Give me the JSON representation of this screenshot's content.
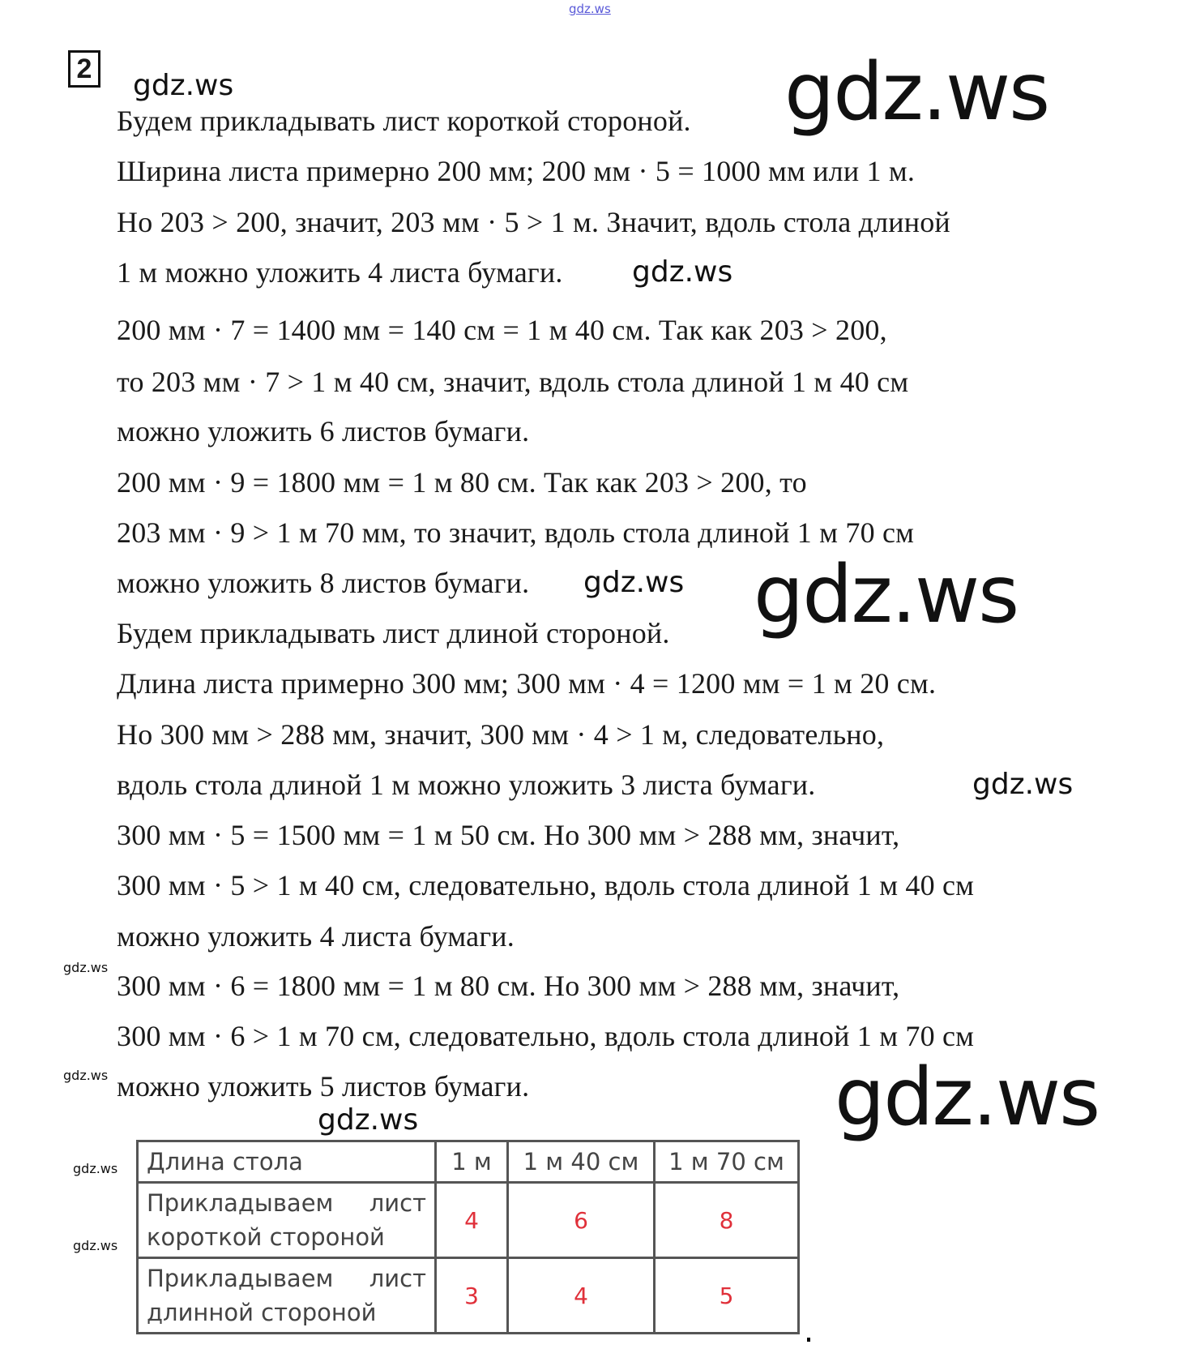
{
  "task_number": "2",
  "lines": [
    "Будем прикладывать лист короткой стороной.",
    "Ширина листа примерно 200 мм; 200 мм · 5 = 1000 мм или 1 м.",
    "Но 203  > 200, значит, 203 мм · 5 > 1 м. Значит, вдоль стола длиной",
    "1 м можно уложить 4 листа бумаги.",
    "200 мм · 7 = 1400 мм = 140 см = 1 м 40 см. Так как 203 > 200,",
    "то 203 мм · 7 > 1 м 40 см, значит, вдоль стола длиной 1 м 40 см",
    "можно уложить 6 листов бумаги.",
    "200 мм · 9 = 1800 мм = 1 м 80 см. Так как 203  > 200, то",
    "203 мм · 9 > 1 м 70 мм, то значит, вдоль стола длиной 1 м 70 см",
    "можно уложить 8 листов бумаги.",
    "Будем прикладывать лист длиной стороной.",
    "Длина листа примерно 300 мм; 300 мм · 4 = 1200 мм = 1 м 20 см.",
    "Но 300 мм > 288 мм, значит, 300 мм · 4 > 1 м, следовательно,",
    "вдоль стола длиной 1 м можно уложить 3 листа бумаги.",
    "300 мм · 5 = 1500 мм = 1 м 50 см. Но 300 мм > 288 мм, значит,",
    "300 мм · 5 > 1 м 40 см, следовательно, вдоль стола длиной 1 м 40 см",
    "можно уложить 4 листа бумаги.",
    "300 мм · 6 = 1800 мм = 1 м 80 см. Но 300 мм > 288 мм, значит,",
    "300 мм · 6 > 1 м 70 см, следовательно, вдоль стола длиной 1 м 70 см",
    "можно уложить 5 листов бумаги."
  ],
  "table": {
    "header": [
      "Длина стола",
      "1 м",
      "1 м 40 см",
      "1 м 70 см"
    ],
    "rows": [
      {
        "label": "Прикладываем лист короткой стороной",
        "values": [
          "4",
          "6",
          "8"
        ]
      },
      {
        "label": "Прикладываем лист длинной стороной",
        "values": [
          "3",
          "4",
          "5"
        ]
      }
    ],
    "value_color": "#e0303a"
  },
  "watermark": "gdz.ws"
}
